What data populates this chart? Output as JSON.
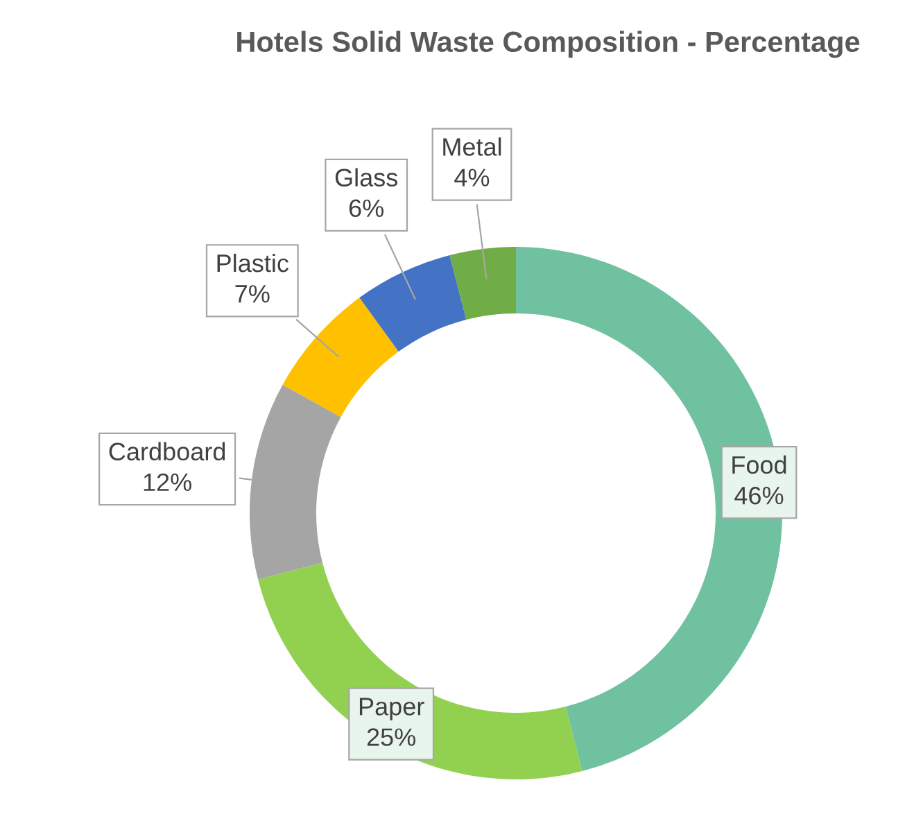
{
  "chart_data": {
    "type": "donut",
    "title": "Hotels Solid Waste Composition - Percentage",
    "categories": [
      "Food",
      "Paper",
      "Cardboard",
      "Plastic",
      "Glass",
      "Metal"
    ],
    "values": [
      46,
      25,
      12,
      7,
      6,
      4
    ],
    "colors": [
      "#6fc1a0",
      "#92d050",
      "#a5a5a5",
      "#ffc000",
      "#4472c4",
      "#70ad47"
    ],
    "value_labels": [
      "46%",
      "25%",
      "12%",
      "7%",
      "6%",
      "4%"
    ]
  }
}
